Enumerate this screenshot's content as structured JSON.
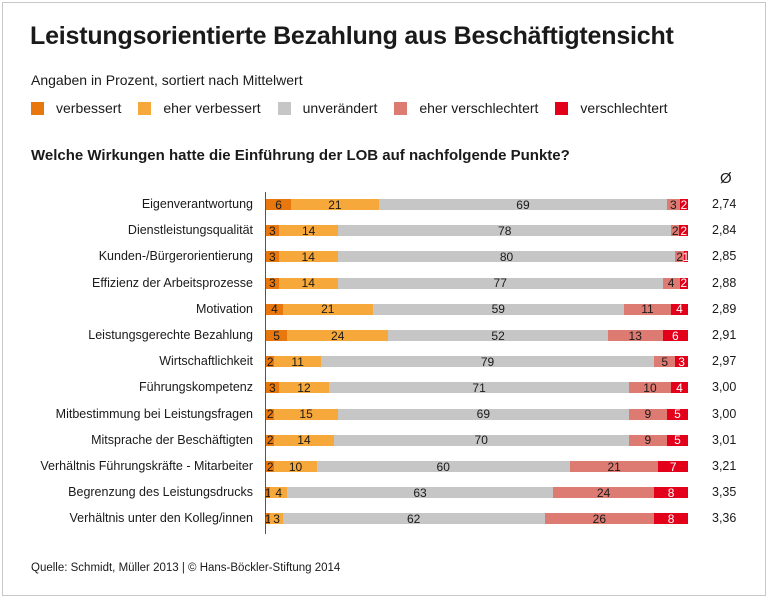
{
  "title": "Leistungsorientierte Bezahlung aus Beschäftigtensicht",
  "subtitle": "Angaben in Prozent, sortiert nach Mittelwert",
  "question": "Welche Wirkungen hatte die Einführung der LOB auf nachfolgende Punkte?",
  "mean_header": "Ø",
  "source": "Quelle: Schmidt, Müller 2013 | © Hans-Böckler-Stiftung 2014",
  "chart_data": {
    "type": "bar",
    "orientation": "horizontal-stacked",
    "unit": "percent",
    "categories": [
      "Eigenverantwortung",
      "Dienstleistungsqualität",
      "Kunden-/Bürgerorientierung",
      "Effizienz der Arbeitsprozesse",
      "Motivation",
      "Leistungsgerechte Bezahlung",
      "Wirtschaftlichkeit",
      "Führungskompetenz",
      "Mitbestimmung bei Leistungsfragen",
      "Mitsprache der Beschäftigten",
      "Verhältnis Führungskräfte - Mitarbeiter",
      "Begrenzung des Leistungsdrucks",
      "Verhältnis unter den Kolleg/innen"
    ],
    "series": [
      {
        "name": "verbessert",
        "color": "#e8770e",
        "values": [
          6,
          3,
          3,
          3,
          4,
          5,
          2,
          3,
          2,
          2,
          2,
          1,
          1
        ]
      },
      {
        "name": "eher verbessert",
        "color": "#f7a83b",
        "values": [
          21,
          14,
          14,
          14,
          21,
          24,
          11,
          12,
          15,
          14,
          10,
          4,
          3
        ]
      },
      {
        "name": "unverändert",
        "color": "#c6c6c6",
        "values": [
          69,
          78,
          80,
          77,
          59,
          52,
          79,
          71,
          69,
          70,
          60,
          63,
          62
        ]
      },
      {
        "name": "eher verschlechtert",
        "color": "#dd7b73",
        "values": [
          3,
          2,
          2,
          4,
          11,
          13,
          5,
          10,
          9,
          9,
          21,
          24,
          26
        ]
      },
      {
        "name": "verschlechtert",
        "color": "#e2001a",
        "values": [
          2,
          2,
          1,
          2,
          4,
          6,
          3,
          4,
          5,
          5,
          7,
          8,
          8
        ]
      }
    ],
    "means": [
      "2,74",
      "2,84",
      "2,85",
      "2,88",
      "2,89",
      "2,91",
      "2,97",
      "3,00",
      "3,00",
      "3,01",
      "3,21",
      "3,35",
      "3,36"
    ],
    "legend": "top",
    "grid": false
  }
}
